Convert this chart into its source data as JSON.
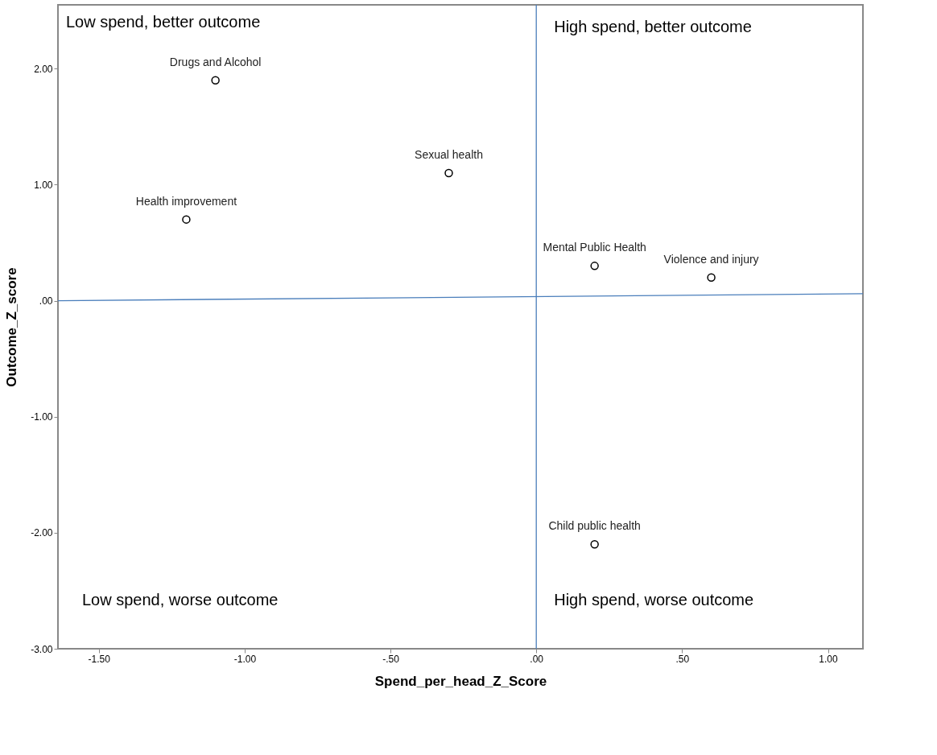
{
  "chart_data": {
    "type": "scatter",
    "xlabel": "Spend_per_head_Z_Score",
    "ylabel": "Outcome_Z_score",
    "x": [
      -1.1,
      -0.3,
      -1.2,
      0.2,
      0.6,
      0.2
    ],
    "series": [
      {
        "color": "#000000",
        "values": [
          1.9,
          1.1,
          0.7,
          0.3,
          0.2,
          -2.1
        ]
      },
      {
        "type": "line",
        "color": "#4a7ebb",
        "marker": "none",
        "line_style": "solid",
        "x": [
          -1.64,
          1.12
        ],
        "values": [
          0.0,
          0.06
        ]
      }
    ],
    "marker": "circle",
    "grid": false,
    "xlim": [
      -1.64,
      1.12
    ],
    "ylim": [
      -3.0,
      2.55
    ],
    "xticks": [
      {
        "value": -1.5,
        "label": "-1.50"
      },
      {
        "value": -1.0,
        "label": "-1.00"
      },
      {
        "value": -0.5,
        "label": "-.50"
      },
      {
        "value": 0,
        "label": ".00"
      },
      {
        "value": 0.5,
        "label": ".50"
      },
      {
        "value": 1.0,
        "label": "1.00"
      }
    ],
    "yticks": [
      {
        "value": -3.0,
        "label": "-3.00"
      },
      {
        "value": -2.0,
        "label": "-2.00"
      },
      {
        "value": -1.0,
        "label": "-1.00"
      },
      {
        "value": 0,
        "label": ".00"
      },
      {
        "value": 1.0,
        "label": "1.00"
      },
      {
        "value": 2.0,
        "label": "2.00"
      }
    ],
    "ref_lines": [
      {
        "axis": "x",
        "value": 0,
        "color": "#4a7ebb"
      }
    ],
    "annotations": [
      {
        "text": "Drugs and Alcohol",
        "x": -1.1,
        "y": 1.9
      },
      {
        "text": "Sexual health",
        "x": -0.3,
        "y": 1.1
      },
      {
        "text": "Health improvement",
        "x": -1.2,
        "y": 0.7
      },
      {
        "text": "Mental Public Health",
        "x": 0.2,
        "y": 0.3
      },
      {
        "text": "Violence and injury",
        "x": 0.6,
        "y": 0.2
      },
      {
        "text": "Child public health",
        "x": 0.2,
        "y": -2.1
      },
      "Low spend, better outcome",
      "High spend, better outcome",
      "Low spend, worse outcome",
      "High spend, worse  outcome"
    ]
  }
}
